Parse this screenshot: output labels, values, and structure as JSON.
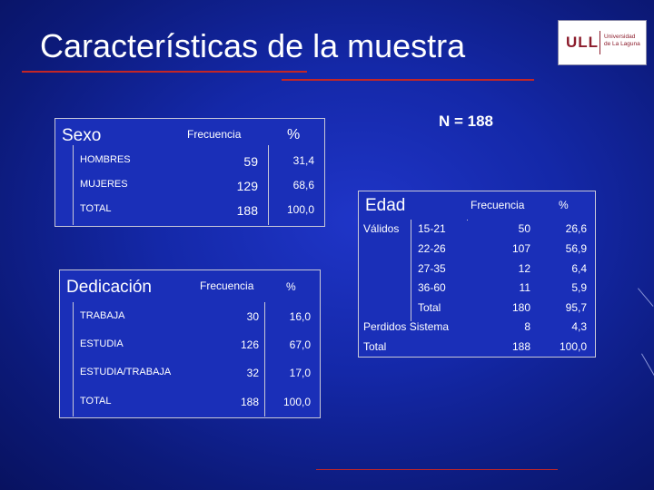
{
  "slide": {
    "title": "Características de la muestra",
    "n_label": "N = 188"
  },
  "logo": {
    "mark": "ULL",
    "name": "Universidad de La Laguna"
  },
  "sexo_table": {
    "heading": "Sexo",
    "col_freq": "Frecuencia",
    "col_pct": "%",
    "rows": [
      {
        "label": "HOMBRES",
        "freq": "59",
        "pct": "31,4"
      },
      {
        "label": "MUJERES",
        "freq": "129",
        "pct": "68,6"
      },
      {
        "label": "TOTAL",
        "freq": "188",
        "pct": "100,0"
      }
    ]
  },
  "dedicacion_table": {
    "heading": "Dedicación",
    "col_freq": "Frecuencia",
    "col_pct": "%",
    "rows": [
      {
        "label": "TRABAJA",
        "freq": "30",
        "pct": "16,0"
      },
      {
        "label": "ESTUDIA",
        "freq": "126",
        "pct": "67,0"
      },
      {
        "label": "ESTUDIA/TRABAJA",
        "freq": "32",
        "pct": "17,0"
      },
      {
        "label": "TOTAL",
        "freq": "188",
        "pct": "100,0"
      }
    ]
  },
  "edad_table": {
    "heading": "Edad",
    "col_freq": "Frecuencia",
    "col_pct": "%",
    "group_label": "Válidos",
    "rows": [
      {
        "label": "15-21",
        "freq": "50",
        "pct": "26,6"
      },
      {
        "label": "22-26",
        "freq": "107",
        "pct": "56,9"
      },
      {
        "label": "27-35",
        "freq": "12",
        "pct": "6,4"
      },
      {
        "label": "36-60",
        "freq": "11",
        "pct": "5,9"
      },
      {
        "label": "Total",
        "freq": "180",
        "pct": "95,7"
      }
    ],
    "missing": {
      "label": "Perdidos Sistema",
      "freq": "8",
      "pct": "4,3"
    },
    "total": {
      "label": "Total",
      "freq": "188",
      "pct": "100,0"
    }
  },
  "colors": {
    "accent_rule": "#c42626",
    "background": "#1428a8",
    "logo_brand": "#8c1d2c"
  }
}
